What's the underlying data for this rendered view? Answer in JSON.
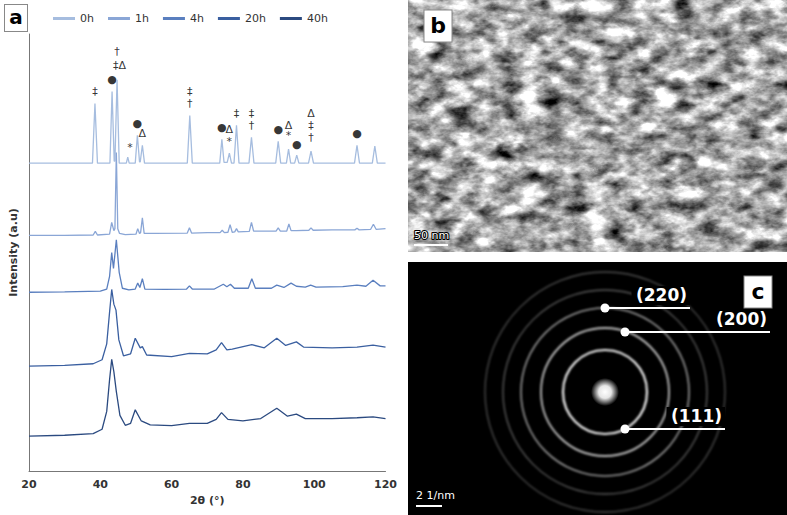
{
  "chart_data": {
    "type": "line",
    "label": "a",
    "x_label": "2θ (°)",
    "y_label": "Intensity (a.u)",
    "xlim": [
      20,
      120
    ],
    "xticks": [
      20,
      40,
      60,
      80,
      100,
      120
    ],
    "ylim": [
      0,
      110
    ],
    "yticks": [],
    "tick_labels": "x",
    "grid": false,
    "legend": "top",
    "series": [
      {
        "name": "0h",
        "color": "#a6bddf",
        "x": [
          20,
          30,
          37.8,
          38.5,
          39.2,
          42.7,
          43.3,
          43.9,
          44.1,
          44.7,
          45.3,
          47.3,
          47.7,
          48.1,
          49.8,
          50.4,
          51,
          51.2,
          51.8,
          52.4,
          64.4,
          65.1,
          65.8,
          73.5,
          74.1,
          74.7,
          75.6,
          76.2,
          76.8,
          77.5,
          78.2,
          78.9,
          81.7,
          82.4,
          83.1,
          89.2,
          89.9,
          90.6,
          92.2,
          92.8,
          93.4,
          94.5,
          95.1,
          95.7,
          98.4,
          99.1,
          99.8,
          111.3,
          112,
          112.7,
          116.3,
          117,
          117.7,
          120
        ],
        "values": [
          77.5,
          77.5,
          77.5,
          92.5,
          77.5,
          77.5,
          95.5,
          78,
          78,
          98.5,
          77.5,
          77.5,
          79,
          77.5,
          77.5,
          84.5,
          77.8,
          77.8,
          82,
          77.5,
          77.5,
          89.5,
          77.5,
          77.5,
          83.5,
          77.7,
          77.7,
          80,
          77.5,
          77.5,
          87,
          77.5,
          77.5,
          84,
          77.5,
          77.5,
          83,
          77.5,
          77.5,
          81,
          77.5,
          77.5,
          79.5,
          77.5,
          77.5,
          80.5,
          77.5,
          77.5,
          82,
          77.5,
          77.5,
          81.8,
          77.5,
          77.5
        ]
      },
      {
        "name": "1h",
        "color": "#8aa6d6",
        "x": [
          20,
          30,
          38,
          38.6,
          39.2,
          42.6,
          43.2,
          43.8,
          44.1,
          44.5,
          44.9,
          45.4,
          47,
          50,
          50.5,
          51,
          51.3,
          51.8,
          52.3,
          55,
          64.4,
          65,
          65.6,
          70,
          73.6,
          74.2,
          74.8,
          75.8,
          76.4,
          77,
          77.7,
          78.2,
          78.7,
          81.8,
          82.4,
          83,
          89.3,
          89.9,
          90.5,
          92.3,
          92.9,
          93.5,
          95,
          98.5,
          99.1,
          99.7,
          105,
          111.4,
          112,
          112.6,
          115.8,
          116.6,
          117.4,
          120
        ],
        "values": [
          59.3,
          59.3,
          59.4,
          60.3,
          59.4,
          59.6,
          62.6,
          60.5,
          61,
          80.2,
          61,
          59.8,
          59.5,
          59.6,
          61,
          59.8,
          60,
          63.7,
          59.8,
          59.8,
          59.9,
          61.2,
          59.9,
          60,
          60,
          60.6,
          60,
          60.1,
          62,
          60.1,
          60.2,
          61,
          60.2,
          60.3,
          62.6,
          60.4,
          60.4,
          61.2,
          60.4,
          60.4,
          62.2,
          60.5,
          60.5,
          60.6,
          61.2,
          60.6,
          60.7,
          60.7,
          61.1,
          60.7,
          60.8,
          62.1,
          60.8,
          61
        ]
      },
      {
        "name": "4h",
        "color": "#5a7fbf",
        "x": [
          20,
          30,
          40,
          41.8,
          42.6,
          43.2,
          43.7,
          44.5,
          45.3,
          46.2,
          48,
          49.8,
          50.5,
          51.1,
          51.8,
          52.5,
          58,
          64.2,
          65,
          65.8,
          72,
          74.5,
          75.5,
          76.5,
          77.6,
          81.5,
          82.5,
          83.5,
          88,
          89.5,
          91.5,
          93.5,
          95,
          97.5,
          99,
          100.5,
          108,
          112,
          114.5,
          116.5,
          118.5,
          120
        ],
        "values": [
          45,
          45.1,
          45.3,
          45.8,
          49,
          55,
          51,
          58.2,
          50,
          46,
          45.6,
          45.8,
          47.3,
          46.2,
          48.4,
          45.8,
          45.7,
          45.8,
          46.6,
          45.8,
          45.8,
          47,
          46.4,
          47,
          46,
          46,
          48.4,
          46,
          46,
          46.8,
          46.2,
          47.3,
          46.5,
          46.3,
          46.8,
          46.3,
          46.4,
          46.8,
          46.5,
          48,
          46.6,
          46.6
        ]
      },
      {
        "name": "20h",
        "color": "#3a5fa0",
        "x": [
          20,
          30,
          38,
          40.5,
          41.8,
          42.6,
          43.2,
          43.8,
          44.4,
          45.2,
          46.5,
          48.5,
          49.8,
          51.2,
          51.8,
          53,
          60,
          65,
          70,
          72.5,
          74,
          75.5,
          77,
          82.5,
          86,
          89.5,
          92,
          95,
          97,
          105,
          112,
          116.5,
          120
        ],
        "values": [
          26.4,
          26.6,
          27,
          28,
          32,
          40,
          45.7,
          42,
          40.5,
          33,
          29,
          29.5,
          33.4,
          31,
          31.3,
          29.2,
          28.8,
          29.6,
          29.5,
          30.5,
          32.3,
          30.5,
          30.7,
          31.8,
          31,
          33.4,
          31.6,
          32.5,
          31.2,
          31,
          31.2,
          31.7,
          31.2
        ]
      },
      {
        "name": "40h",
        "color": "#2b4a80",
        "x": [
          20,
          30,
          38,
          40.5,
          41.8,
          42.6,
          43.2,
          43.8,
          44.5,
          45.5,
          47,
          48.5,
          49.8,
          51.5,
          54,
          60,
          65,
          70,
          72.5,
          74,
          75.8,
          80,
          85,
          89.5,
          92.5,
          95,
          97.5,
          105,
          112,
          116.5,
          120
        ],
        "values": [
          8.8,
          9,
          9.4,
          10.5,
          15,
          23,
          28.1,
          25,
          20,
          14,
          11.5,
          12,
          15.4,
          12.6,
          11.6,
          11.4,
          12,
          12,
          13,
          14.7,
          13,
          12.6,
          13.2,
          15.8,
          13.8,
          14.3,
          13.2,
          13.2,
          13.4,
          13.6,
          13.2
        ]
      }
    ],
    "annotations": [
      {
        "text": "‡",
        "x": 38.5,
        "y": 95.5
      },
      {
        "text": "●",
        "x": 43.3,
        "y": 98.5
      },
      {
        "text": "†",
        "x": 44.7,
        "y": 105.5
      },
      {
        "text": "‡Δ",
        "x": 45.4,
        "y": 102
      },
      {
        "text": "*",
        "x": 48.3,
        "y": 81.5
      },
      {
        "text": "●",
        "x": 50.4,
        "y": 87.5
      },
      {
        "text": "Δ",
        "x": 51.8,
        "y": 85
      },
      {
        "text": "‡",
        "x": 65.1,
        "y": 95.5
      },
      {
        "text": "†",
        "x": 65.1,
        "y": 92.5
      },
      {
        "text": "●",
        "x": 74.1,
        "y": 86.5
      },
      {
        "text": "Δ",
        "x": 76.2,
        "y": 86
      },
      {
        "text": "*",
        "x": 76.2,
        "y": 83
      },
      {
        "text": "‡",
        "x": 78.2,
        "y": 90
      },
      {
        "text": "‡",
        "x": 82.4,
        "y": 90
      },
      {
        "text": "†",
        "x": 82.4,
        "y": 87
      },
      {
        "text": "●",
        "x": 89.9,
        "y": 86
      },
      {
        "text": "Δ",
        "x": 92.8,
        "y": 87
      },
      {
        "text": "*",
        "x": 92.8,
        "y": 84.5
      },
      {
        "text": "●",
        "x": 95.1,
        "y": 82.3
      },
      {
        "text": "Δ",
        "x": 99.1,
        "y": 90
      },
      {
        "text": "‡",
        "x": 99.1,
        "y": 87
      },
      {
        "text": "†",
        "x": 99.1,
        "y": 84
      },
      {
        "text": "●",
        "x": 112,
        "y": 85
      }
    ]
  },
  "images": [
    {
      "label": "b",
      "scale_bar": "50 nm"
    },
    {
      "label": "c",
      "scale_bar": "2 1/nm",
      "rings": [
        "(220)",
        "(200)",
        "(111)"
      ]
    }
  ]
}
